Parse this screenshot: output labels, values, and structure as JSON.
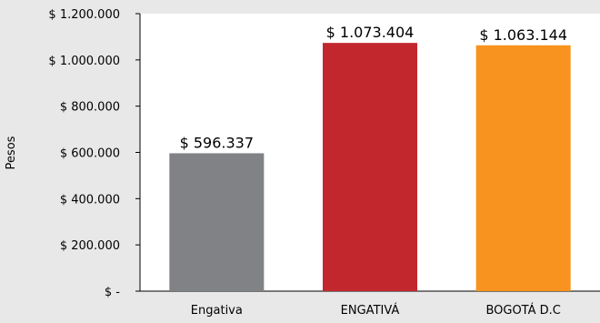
{
  "chart_data": {
    "type": "bar",
    "categories": [
      "Engativa",
      "ENGATIVÁ",
      "BOGOTÁ D.C"
    ],
    "values": [
      596337,
      1073404,
      1063144
    ],
    "value_labels": [
      "$ 596.337",
      "$ 1.073.404",
      "$ 1.063.144"
    ],
    "colors": [
      "#808285",
      "#c1272d",
      "#f7931e"
    ],
    "ylabel": "Pesos",
    "ylim": [
      0,
      1200000
    ],
    "yticks": [
      0,
      200000,
      400000,
      600000,
      800000,
      1000000,
      1200000
    ],
    "ytick_labels": [
      "$ -",
      "$ 200.000",
      "$ 400.000",
      "$ 600.000",
      "$ 800.000",
      "$ 1.000.000",
      "$ 1.200.000"
    ],
    "grid": false,
    "legend": "none"
  }
}
